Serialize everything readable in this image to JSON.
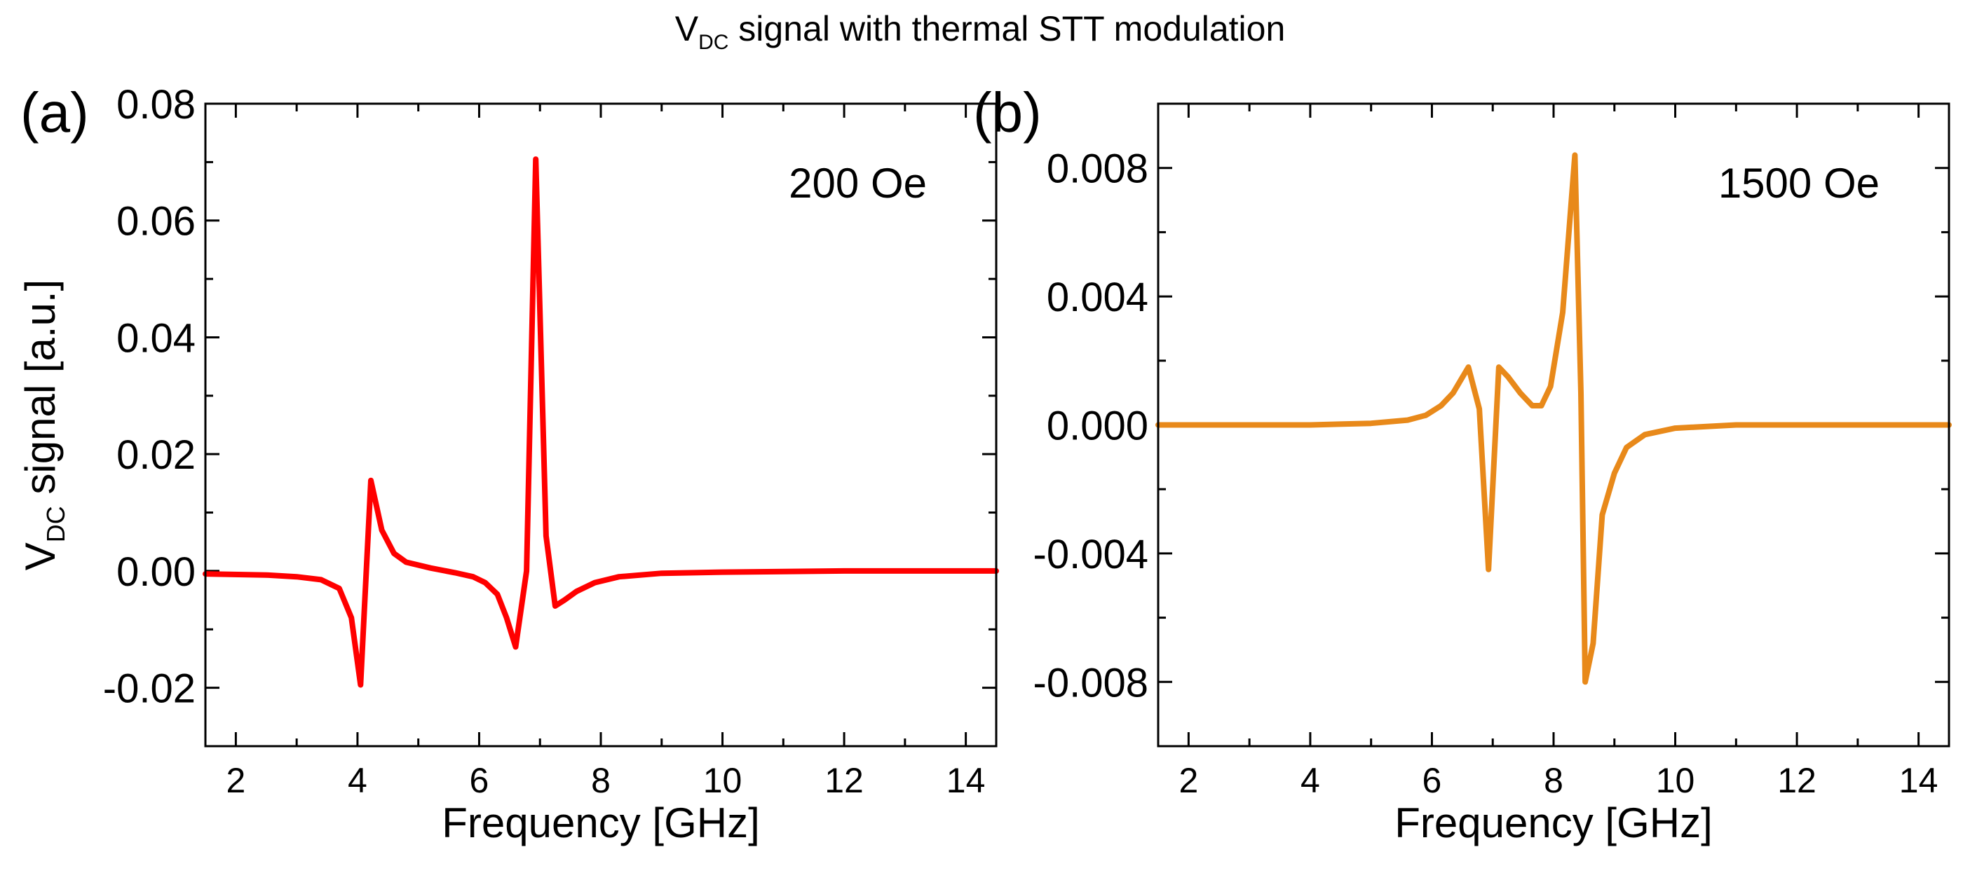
{
  "figure": {
    "title_main": "V",
    "title_sub": "DC",
    "title_rest": " signal with thermal STT modulation"
  },
  "chart_data": [
    {
      "type": "line",
      "panel_label": "(a)",
      "annotation": "200 Oe",
      "xlabel": "Frequency [GHz]",
      "ylabel_main": "V",
      "ylabel_sub": "DC",
      "ylabel_rest": " signal [a.u.]",
      "xlim": [
        1.5,
        14.5
      ],
      "ylim": [
        -0.03,
        0.08
      ],
      "x_ticks": [
        2,
        4,
        6,
        8,
        10,
        12,
        14
      ],
      "x_tick_labels": [
        "2",
        "4",
        "6",
        "8",
        "10",
        "12",
        "14"
      ],
      "y_ticks": [
        -0.02,
        0,
        0.02,
        0.04,
        0.06,
        0.08
      ],
      "y_tick_labels": [
        "-0.02",
        "0.00",
        "0.02",
        "0.04",
        "0.06",
        "0.08"
      ],
      "x_minor_step": 1,
      "y_minor_step": 0.01,
      "grid": false,
      "color": "#ff0000",
      "x": [
        1.5,
        2.5,
        3.0,
        3.4,
        3.7,
        3.9,
        4.05,
        4.22,
        4.4,
        4.6,
        4.8,
        5.2,
        5.6,
        5.9,
        6.1,
        6.3,
        6.45,
        6.6,
        6.78,
        6.93,
        7.1,
        7.25,
        7.4,
        7.6,
        7.9,
        8.3,
        9.0,
        10.0,
        12.0,
        14.5
      ],
      "y": [
        -0.0005,
        -0.0007,
        -0.001,
        -0.0015,
        -0.003,
        -0.008,
        -0.0195,
        0.0155,
        0.007,
        0.003,
        0.0015,
        0.0005,
        -0.0003,
        -0.001,
        -0.002,
        -0.004,
        -0.008,
        -0.013,
        0.0,
        0.0705,
        0.006,
        -0.006,
        -0.005,
        -0.0035,
        -0.002,
        -0.001,
        -0.0004,
        -0.0002,
        0.0,
        0.0
      ]
    },
    {
      "type": "line",
      "panel_label": "(b)",
      "annotation": "1500 Oe",
      "xlabel": "Frequency [GHz]",
      "ylabel_main": "",
      "ylabel_sub": "",
      "ylabel_rest": "",
      "xlim": [
        1.5,
        14.5
      ],
      "ylim": [
        -0.01,
        0.01
      ],
      "x_ticks": [
        2,
        4,
        6,
        8,
        10,
        12,
        14
      ],
      "x_tick_labels": [
        "2",
        "4",
        "6",
        "8",
        "10",
        "12",
        "14"
      ],
      "y_ticks": [
        -0.008,
        -0.004,
        0,
        0.004,
        0.008
      ],
      "y_tick_labels": [
        "-0.008",
        "-0.004",
        "0.000",
        "0.004",
        "0.008"
      ],
      "x_minor_step": 1,
      "y_minor_step": 0.002,
      "grid": false,
      "color": "#e8891a",
      "x": [
        1.5,
        3.0,
        4.0,
        5.0,
        5.6,
        5.9,
        6.15,
        6.35,
        6.6,
        6.78,
        6.93,
        7.1,
        7.25,
        7.45,
        7.65,
        7.8,
        7.95,
        8.15,
        8.35,
        8.45,
        8.52,
        8.65,
        8.8,
        9.0,
        9.2,
        9.5,
        10.0,
        11.0,
        14.5
      ],
      "y": [
        0.0,
        0.0,
        0.0,
        5e-05,
        0.00015,
        0.0003,
        0.0006,
        0.001,
        0.0018,
        0.0005,
        -0.0045,
        0.0018,
        0.0015,
        0.001,
        0.0006,
        0.0006,
        0.0012,
        0.0035,
        0.0084,
        0.001,
        -0.008,
        -0.0068,
        -0.0028,
        -0.0015,
        -0.0007,
        -0.0003,
        -0.0001,
        0.0,
        0.0
      ]
    }
  ]
}
